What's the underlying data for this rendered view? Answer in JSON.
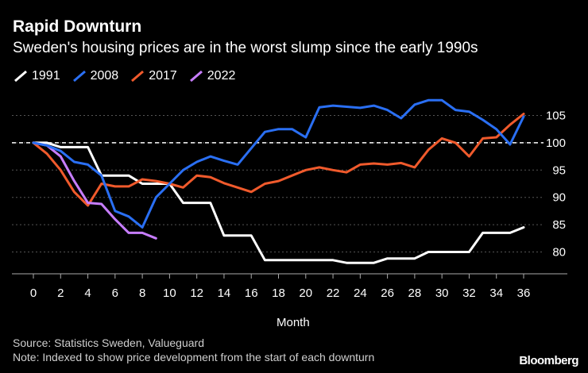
{
  "chart_data": {
    "type": "line",
    "title": "Rapid Downturn",
    "subtitle": "Sweden's housing prices are in the worst slump since the early 1990s",
    "xlabel": "Month",
    "ylabel": "",
    "xlim": [
      0,
      36
    ],
    "ylim": [
      76,
      109
    ],
    "x_ticks": [
      0,
      2,
      4,
      6,
      8,
      10,
      12,
      14,
      16,
      18,
      20,
      22,
      24,
      26,
      28,
      30,
      32,
      34,
      36
    ],
    "y_ticks": [
      80,
      85,
      90,
      95,
      100,
      105
    ],
    "reference_line": 100,
    "series": [
      {
        "name": "1991",
        "color": "#ffffff",
        "x": [
          0,
          1,
          2,
          3,
          4,
          5,
          6,
          7,
          8,
          9,
          10,
          11,
          12,
          13,
          14,
          15,
          16,
          17,
          18,
          19,
          20,
          21,
          22,
          23,
          24,
          25,
          26,
          27,
          28,
          29,
          30,
          31,
          32,
          33,
          34,
          35,
          36
        ],
        "values": [
          100,
          100,
          99.2,
          99.2,
          99.2,
          94,
          94,
          94,
          92.5,
          92.5,
          92.5,
          89,
          89,
          89,
          83,
          83,
          83,
          78.5,
          78.5,
          78.5,
          78.5,
          78.5,
          78.5,
          78,
          78,
          78,
          78.8,
          78.8,
          78.8,
          80,
          80,
          80,
          80,
          83.5,
          83.5,
          83.5,
          84.5
        ]
      },
      {
        "name": "2008",
        "color": "#2a6ff3",
        "x": [
          0,
          1,
          2,
          3,
          4,
          5,
          6,
          7,
          8,
          9,
          10,
          11,
          12,
          13,
          14,
          15,
          16,
          17,
          18,
          19,
          20,
          21,
          22,
          23,
          24,
          25,
          26,
          27,
          28,
          29,
          30,
          31,
          32,
          33,
          34,
          35,
          36
        ],
        "values": [
          100,
          99.5,
          98.5,
          96.5,
          96,
          94,
          87.5,
          86.5,
          84.5,
          90,
          92.5,
          95,
          96.5,
          97.5,
          96.7,
          96,
          99,
          102,
          102.5,
          102.5,
          101,
          106.5,
          106.8,
          106.6,
          106.4,
          106.8,
          106,
          104.5,
          107,
          107.8,
          107.8,
          106,
          105.7,
          104.2,
          102.5,
          99.7,
          104.8
        ]
      },
      {
        "name": "2017",
        "color": "#f05a2c",
        "x": [
          0,
          1,
          2,
          3,
          4,
          5,
          6,
          7,
          8,
          9,
          10,
          11,
          12,
          13,
          14,
          15,
          16,
          17,
          18,
          19,
          20,
          21,
          22,
          23,
          24,
          25,
          26,
          27,
          28,
          29,
          30,
          31,
          32,
          33,
          34,
          35,
          36
        ],
        "values": [
          100,
          98,
          95,
          91,
          88.5,
          92.5,
          92,
          92,
          93.3,
          93,
          92.5,
          91.8,
          94,
          93.7,
          92.6,
          91.8,
          91,
          92.5,
          93,
          94,
          95,
          95.5,
          95,
          94.6,
          96,
          96.2,
          96,
          96.3,
          95.5,
          98.7,
          100.8,
          100,
          97.5,
          100.8,
          101,
          103.3,
          105.3
        ]
      },
      {
        "name": "2022",
        "color": "#c77dff",
        "x": [
          0,
          1,
          2,
          3,
          4,
          5,
          6,
          7,
          8,
          9
        ],
        "values": [
          100,
          99.5,
          97.5,
          93,
          89,
          88.8,
          86,
          83.5,
          83.5,
          82.5
        ]
      }
    ]
  },
  "footer": {
    "source": "Source: Statistics Sweden, Valueguard",
    "note": "Note: Indexed to show price development from the start of each downturn",
    "brand": "Bloomberg"
  }
}
